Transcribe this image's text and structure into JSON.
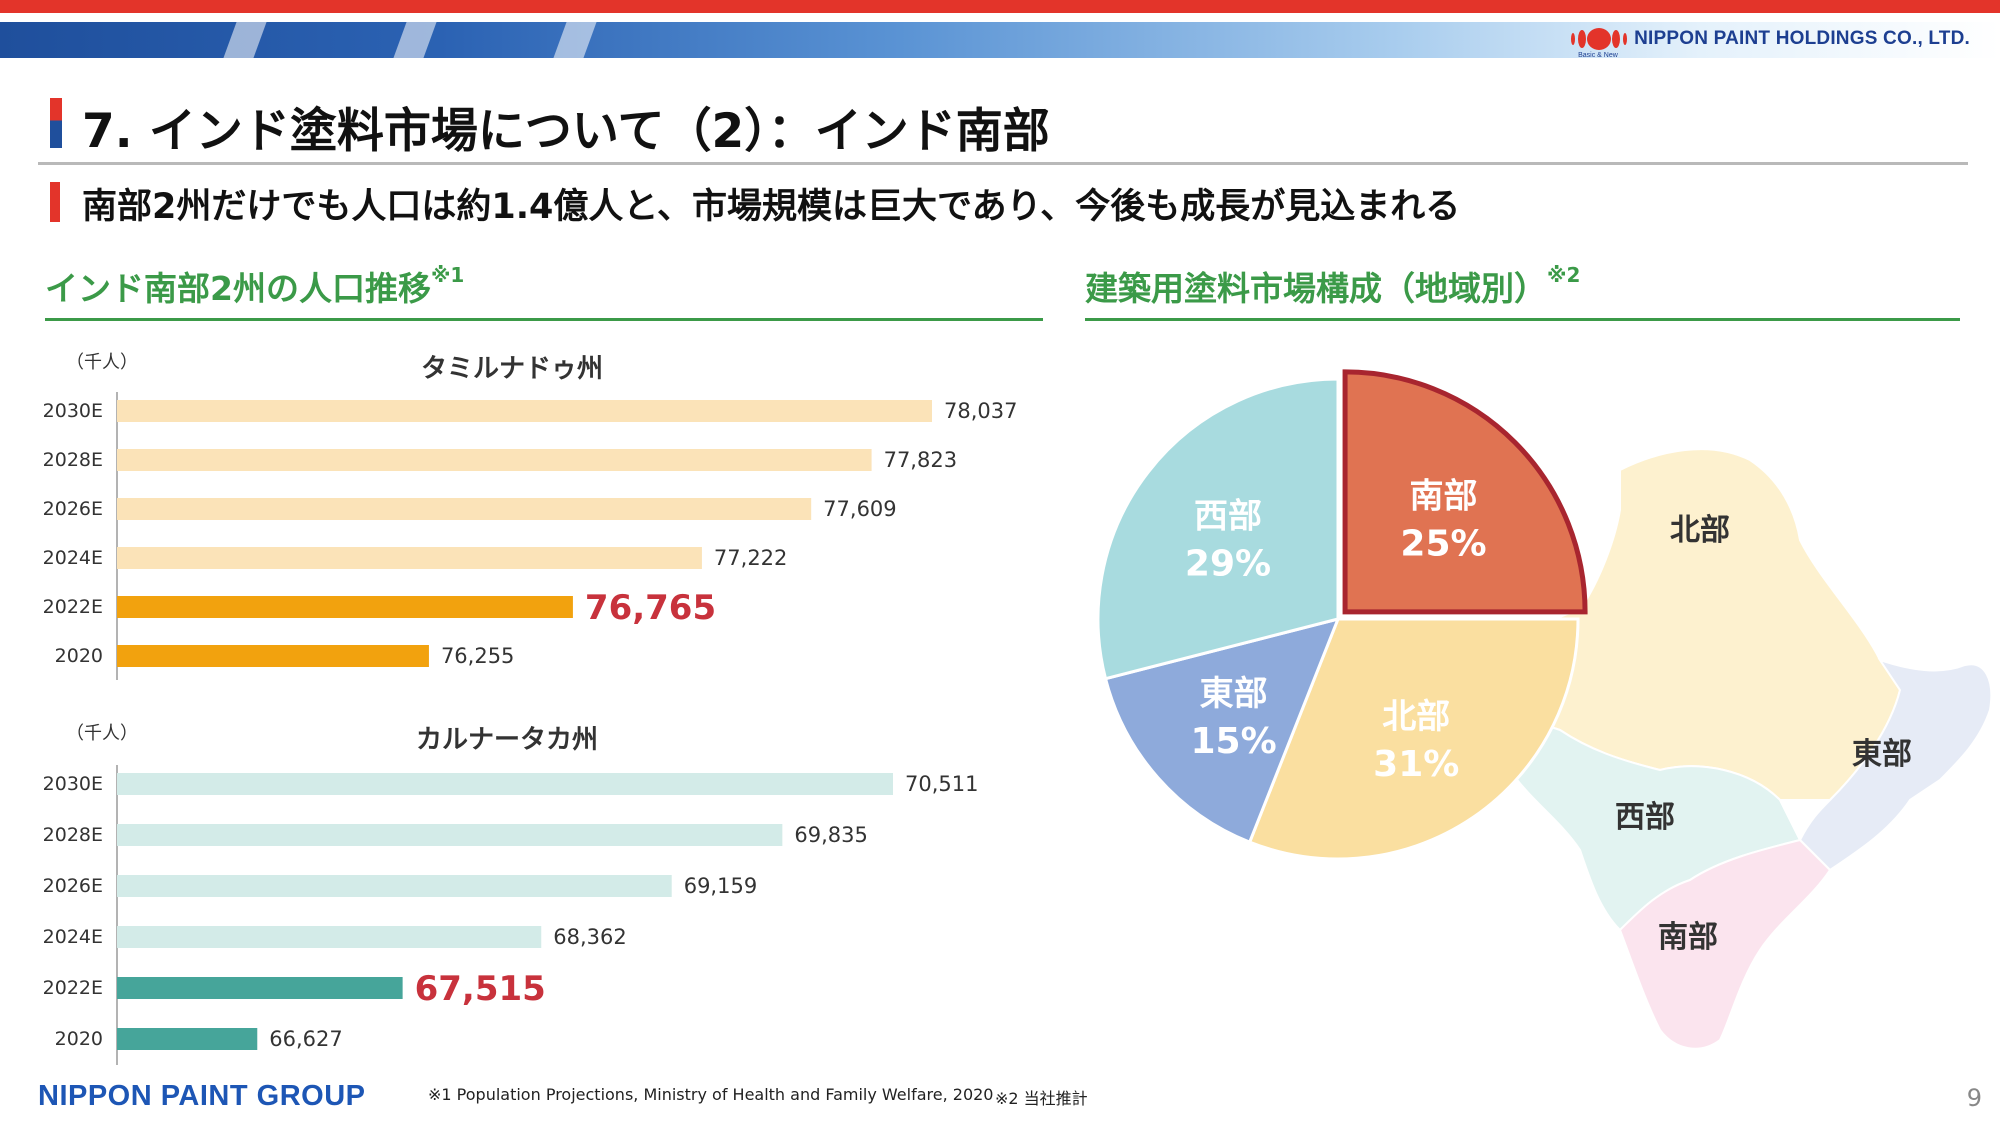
{
  "header": {
    "corp_name": "NIPPON PAINT HOLDINGS CO., LTD.",
    "corp_tagline": "Basic & New",
    "page_title": "7. インド塗料市場について（2）：インド南部",
    "subtitle": "南部2州だけでも人口は約1.4億人と、市場規模は巨大であり、今後も成長が見込まれる",
    "colors": {
      "red": "#e3342a",
      "blue": "#1f4f9c",
      "green": "#3b9a48",
      "highlight": "#c8323c"
    }
  },
  "left_section": {
    "title": "インド南部2州の人口推移",
    "note_mark": "※1"
  },
  "right_section": {
    "title": "建築用塗料市場構成（地域別）",
    "note_mark": "※2"
  },
  "chart_data": [
    {
      "type": "bar",
      "orientation": "horizontal",
      "title": "タミルナドゥ州",
      "unit": "（千人）",
      "categories": [
        "2030E",
        "2028E",
        "2026E",
        "2024E",
        "2022E",
        "2020"
      ],
      "values": [
        78037,
        77823,
        77609,
        77222,
        76765,
        76255
      ],
      "value_labels": [
        "78,037",
        "77,823",
        "77,609",
        "77,222",
        "76,765",
        "76,255"
      ],
      "highlight_index": 4,
      "colors": {
        "projection": "#fbe3b8",
        "actual": "#f2a20e"
      }
    },
    {
      "type": "bar",
      "orientation": "horizontal",
      "title": "カルナータカ州",
      "unit": "（千人）",
      "categories": [
        "2030E",
        "2028E",
        "2026E",
        "2024E",
        "2022E",
        "2020"
      ],
      "values": [
        70511,
        69835,
        69159,
        68362,
        67515,
        66627
      ],
      "value_labels": [
        "70,511",
        "69,835",
        "69,159",
        "68,362",
        "67,515",
        "66,627"
      ],
      "highlight_index": 4,
      "colors": {
        "projection": "#d3ebe8",
        "actual": "#46a59a"
      }
    },
    {
      "type": "pie",
      "slices": [
        {
          "label": "南部",
          "value": 25,
          "value_label": "25%",
          "color": "#e07352",
          "emphasized": true
        },
        {
          "label": "北部",
          "value": 31,
          "value_label": "31%",
          "color": "#fadfa0"
        },
        {
          "label": "東部",
          "value": 15,
          "value_label": "15%",
          "color": "#8eaadb"
        },
        {
          "label": "西部",
          "value": 29,
          "value_label": "29%",
          "color": "#a8dbdf"
        }
      ]
    }
  ],
  "map": {
    "regions": [
      {
        "label": "北部",
        "color": "#fdf1cf"
      },
      {
        "label": "東部",
        "color": "#e6ebf6"
      },
      {
        "label": "西部",
        "color": "#e2f3f1"
      },
      {
        "label": "南部",
        "color": "#fbe4ee"
      }
    ]
  },
  "footer": {
    "brand": "NIPPON PAINT GROUP",
    "note1": "※1 Population Projections, Ministry of Health and Family Welfare, 2020",
    "note2": "※2 当社推計",
    "page": "9"
  }
}
